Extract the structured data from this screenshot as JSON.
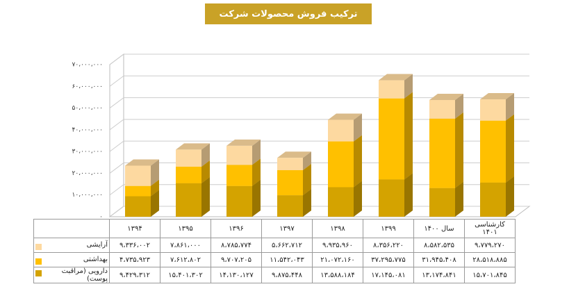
{
  "chart_data": {
    "type": "bar3d",
    "title": "ترکیب فروش محصولات شرکت",
    "categories": [
      "۱۳۹۴",
      "۱۳۹۵",
      "۱۳۹۶",
      "۱۳۹۷",
      "۱۳۹۸",
      "۱۳۹۹",
      "سال ۱۴۰۰",
      "کارشناسی ۱۴۰۱"
    ],
    "series": [
      {
        "name": "دارویی (مراقبت پوست)",
        "color": "#d4a300",
        "values": [
          9429312,
          15401302,
          14130127,
          9875448,
          13588184,
          17145081,
          13174841,
          15701845
        ],
        "value_labels": [
          "۹،۴۲۹،۳۱۲",
          "۱۵،۴۰۱،۳۰۲",
          "۱۴،۱۳۰،۱۲۷",
          "۹،۸۷۵،۴۴۸",
          "۱۳،۵۸۸،۱۸۴",
          "۱۷،۱۴۵،۰۸۱",
          "۱۳،۱۷۴،۸۴۱",
          "۱۵،۷۰۱،۸۴۵"
        ]
      },
      {
        "name": "بهداشتی",
        "color": "#ffc000",
        "values": [
          4735923,
          7612802,
          9707205,
          11542043,
          21072160,
          37295775,
          31945408,
          28518885
        ],
        "value_labels": [
          "۴،۷۳۵،۹۲۳",
          "۷،۶۱۲،۸۰۲",
          "۹،۷۰۷،۲۰۵",
          "۱۱،۵۴۲،۰۴۳",
          "۲۱،۰۷۲،۱۶۰",
          "۳۷،۲۹۵،۷۷۵",
          "۳۱،۹۴۵،۴۰۸",
          "۲۸،۵۱۸،۸۸۵"
        ]
      },
      {
        "name": "آرایشی",
        "color": "#fdd9a0",
        "values": [
          9336002,
          7861000,
          8785774,
          5662712,
          9935960,
          8356220,
          8582535,
          9779270
        ],
        "value_labels": [
          "۹،۳۳۶،۰۰۲",
          "۷،۸۶۱،۰۰۰",
          "۸،۷۸۵،۷۷۴",
          "۵،۶۶۲،۷۱۲",
          "۹،۹۳۵،۹۶۰",
          "۸،۳۵۶،۲۲۰",
          "۸،۵۸۲،۵۳۵",
          "۹،۷۷۹،۲۷۰"
        ]
      }
    ],
    "ylim": [
      0,
      70000000
    ],
    "yticks": [
      {
        "value": 0,
        "label": "۰"
      },
      {
        "value": 10000000,
        "label": "۱۰،۰۰۰،۰۰۰"
      },
      {
        "value": 20000000,
        "label": "۲۰،۰۰۰،۰۰۰"
      },
      {
        "value": 30000000,
        "label": "۳۰،۰۰۰،۰۰۰"
      },
      {
        "value": 40000000,
        "label": "۴۰،۰۰۰،۰۰۰"
      },
      {
        "value": 50000000,
        "label": "۵۰،۰۰۰،۰۰۰"
      },
      {
        "value": 60000000,
        "label": "۶۰،۰۰۰،۰۰۰"
      },
      {
        "value": 70000000,
        "label": "۷۰،۰۰۰،۰۰۰"
      }
    ],
    "grid": true
  }
}
